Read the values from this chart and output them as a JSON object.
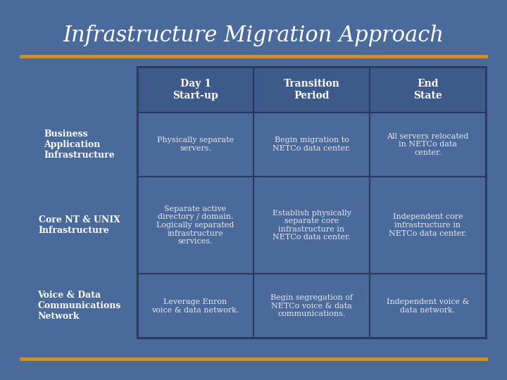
{
  "title": "Infrastructure Migration Approach",
  "bg_color": "#4a6a9c",
  "accent_color": "#c8922a",
  "table_bg": "#4a6a9c",
  "cell_border_color": "#2a3a5c",
  "header_bg": "#3d5a8a",
  "text_color": "#ffffff",
  "cell_text_color": "#e8e8f0",
  "row_labels": [
    "Business\nApplication\nInfrastructure",
    "Core NT & UNIX\nInfrastructure",
    "Voice & Data\nCommunications\nNetwork"
  ],
  "col_headers": [
    "Day 1\nStart-up",
    "Transition\nPeriod",
    "End\nState"
  ],
  "cells": [
    [
      "Physically separate\nservers.",
      "Begin migration to\nNETCo data center.",
      "All servers relocated\nin NETCo data\ncenter."
    ],
    [
      "Separate active\ndirectory / domain.\nLogically separated\ninfrastructure\nservices.",
      "Establish physically\nseparate core\ninfrastructure in\nNETCo data center.",
      "Independent core\ninfrastructure in\nNETCo data center."
    ],
    [
      "Leverage Enron\nvoice & data network.",
      "Begin segregation of\nNETCo voice & data\ncommunications.",
      "Independent voice &\ndata network."
    ]
  ]
}
